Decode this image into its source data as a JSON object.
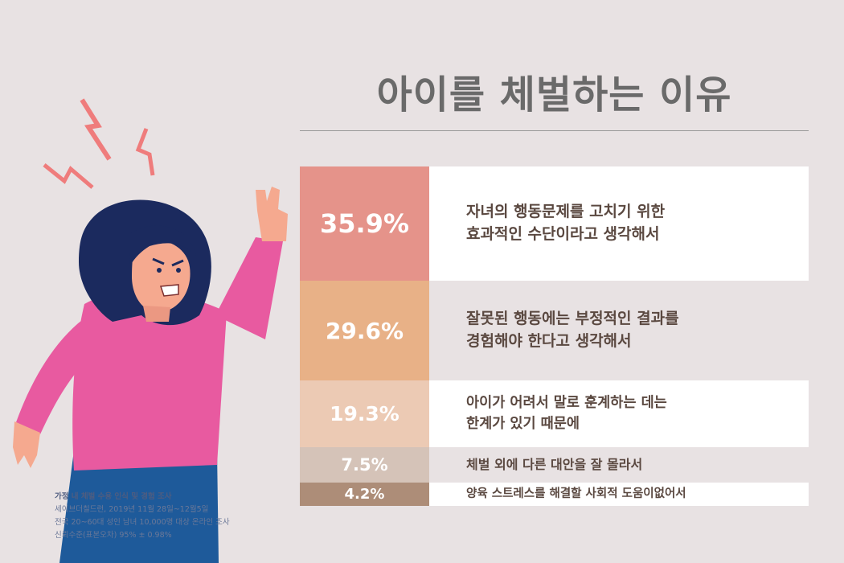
{
  "title": "아이를 체벌하는 이유",
  "chart_data": {
    "type": "table",
    "title": "아이를 체벌하는 이유",
    "rows": [
      {
        "percent": "35.9%",
        "value": 35.9,
        "reason_line1": "자녀의 행동문제를 고치기 위한",
        "reason_line2": "효과적인 수단이라고 생각해서",
        "pct_color": "#e5938a",
        "text_bg": "#ffffff"
      },
      {
        "percent": "29.6%",
        "value": 29.6,
        "reason_line1": "잘못된 행동에는 부정적인 결과를",
        "reason_line2": "경험해야 한다고 생각해서",
        "pct_color": "#e8b187",
        "text_bg": "#e8e2e3"
      },
      {
        "percent": "19.3%",
        "value": 19.3,
        "reason_line1": "아이가 어려서 말로 훈계하는 데는",
        "reason_line2": "한계가 있기 때문에",
        "pct_color": "#eccab4",
        "text_bg": "#ffffff"
      },
      {
        "percent": "7.5%",
        "value": 7.5,
        "reason_line1": "체벌 외에 다른 대안을 잘 몰라서",
        "reason_line2": "",
        "pct_color": "#d5c3b8",
        "text_bg": "#e8e2e3"
      },
      {
        "percent": "4.2%",
        "value": 4.2,
        "reason_line1": "양육 스트레스를 해결할 사회적 도움이없어서",
        "reason_line2": "",
        "pct_color": "#ad8d78",
        "text_bg": "#ffffff"
      }
    ]
  },
  "source": {
    "heading": "가정 내 체벌 수용 인식 및 경험 조사",
    "line1": "세이브더칠드런, 2019년 11월 28일~12월5일",
    "line2": "전국 20~60대 성인 남녀 10,000명 대상 온라인 조사",
    "line3": "신뢰수준(표본오차) 95% ± 0.98%"
  },
  "colors": {
    "background": "#e8e2e3",
    "title": "#6a6a6a",
    "reason_text": "#5a4840",
    "shirt": "#e85aa0",
    "hair": "#1b2a5e",
    "jeans": "#1e5a9a",
    "lightning": "#ef7c7c"
  }
}
